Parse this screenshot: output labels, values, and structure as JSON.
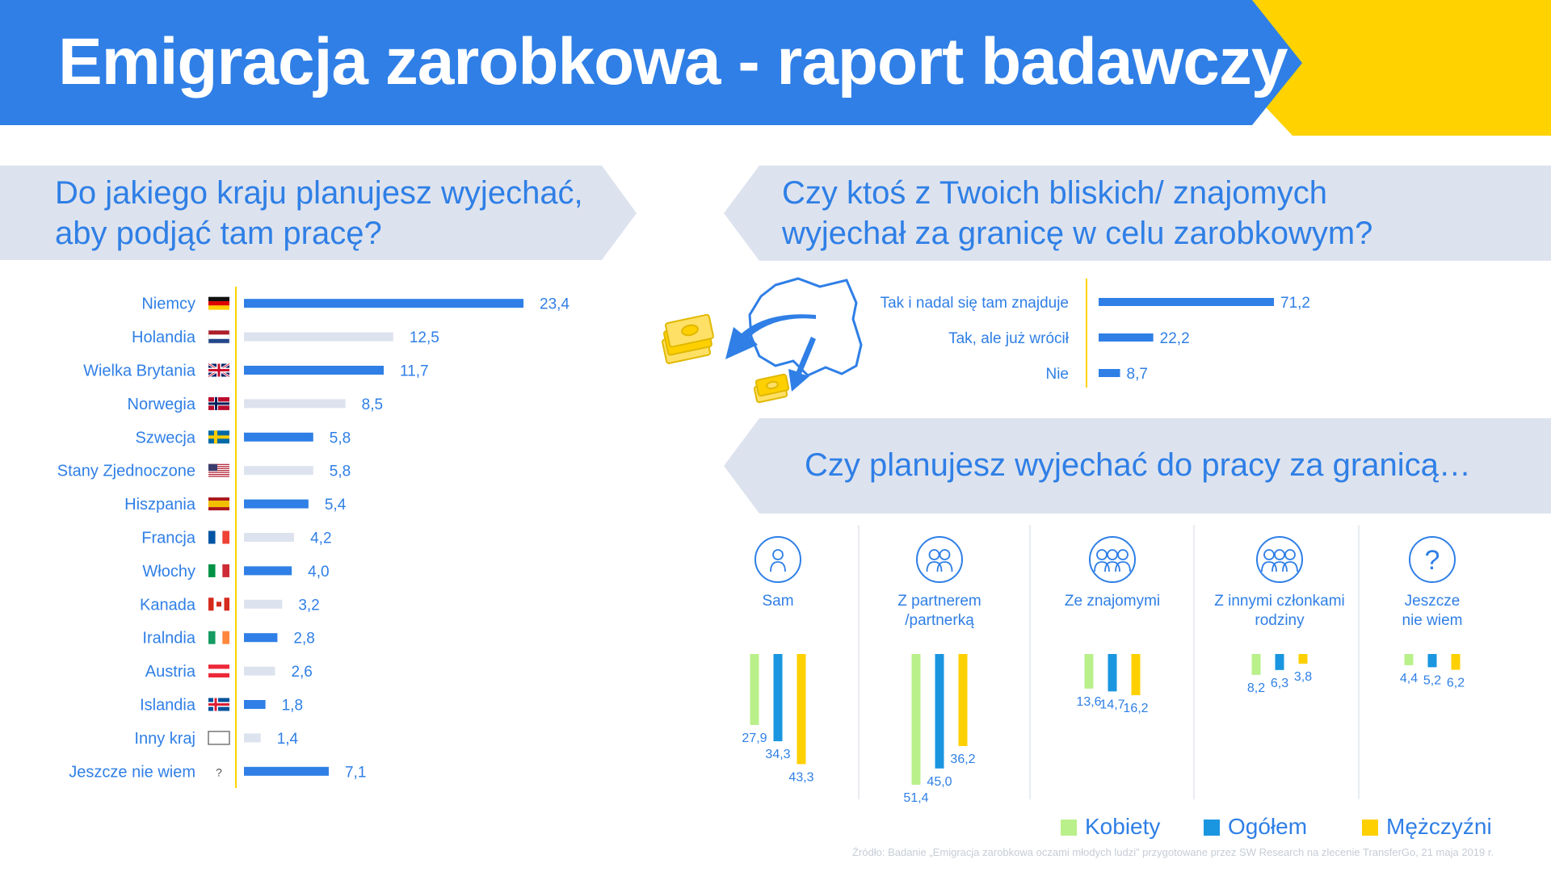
{
  "header": {
    "title": "Emigracja zarobkowa - raport badawczy"
  },
  "colors": {
    "accent": "#2f7fe6",
    "light_bar": "#dde3ee",
    "banner_yellow": "#ffd200",
    "kobiety": "#b9f08a",
    "ogolem": "#1a96e0",
    "mezczyzni": "#ffd000"
  },
  "questions": {
    "q1": {
      "line1": "Do jakiego kraju planujesz wyjechać,",
      "line2": "aby podjąć tam pracę?"
    },
    "q2": {
      "line1": "Czy ktoś z Twoich bliskich/ znajomych",
      "line2": "wyjechał za granicę w celu zarobkowym?"
    },
    "q3": {
      "line1": "Czy planujesz wyjechać do pracy za granicą…"
    }
  },
  "chart_data": [
    {
      "type": "bar",
      "orientation": "horizontal",
      "categories": [
        "Niemcy",
        "Holandia",
        "Wielka Brytania",
        "Norwegia",
        "Szwecja",
        "Stany Zjednoczone",
        "Hiszpania",
        "Francja",
        "Włochy",
        "Kanada",
        "Iralndia",
        "Austria",
        "Islandia",
        "Inny kraj",
        "Jeszcze nie wiem"
      ],
      "values": [
        23.4,
        12.5,
        11.7,
        8.5,
        5.8,
        5.8,
        5.4,
        4.2,
        4.0,
        3.2,
        2.8,
        2.6,
        1.8,
        1.4,
        7.1
      ],
      "value_labels": [
        "23,4",
        "12,5",
        "11,7",
        "8,5",
        "5,8",
        "5,8",
        "5,4",
        "4,2",
        "4,0",
        "3,2",
        "2,8",
        "2,6",
        "1,8",
        "1,4",
        "7,1"
      ],
      "icons": [
        "flag-de",
        "flag-nl",
        "flag-gb",
        "flag-no",
        "flag-se",
        "flag-us",
        "flag-es",
        "flag-fr",
        "flag-it",
        "flag-ca",
        "flag-ie",
        "flag-at",
        "flag-is",
        "flag-empty",
        "question-mark"
      ],
      "question_glyph": "?",
      "bar_colors": [
        "#2f7fe6",
        "#dde3ee",
        "#2f7fe6",
        "#dde3ee",
        "#2f7fe6",
        "#dde3ee",
        "#2f7fe6",
        "#dde3ee",
        "#2f7fe6",
        "#dde3ee",
        "#2f7fe6",
        "#dde3ee",
        "#2f7fe6",
        "#dde3ee",
        "#2f7fe6"
      ]
    },
    {
      "type": "bar",
      "orientation": "horizontal",
      "categories": [
        "Tak i nadal się tam znajduje",
        "Tak, ale już wrócił",
        "Nie"
      ],
      "values": [
        71.2,
        22.2,
        8.7
      ],
      "value_labels": [
        "71,2",
        "22,2",
        "8,7"
      ]
    },
    {
      "type": "bar",
      "orientation": "vertical",
      "categories": [
        {
          "line1": "Sam",
          "line2": "",
          "icon": "person-icon"
        },
        {
          "line1": "Z partnerem",
          "line2": "/partnerką",
          "icon": "couple-icon"
        },
        {
          "line1": "Ze znajomymi",
          "line2": "",
          "icon": "friends-icon"
        },
        {
          "line1": "Z innymi członkami",
          "line2": "rodziny",
          "icon": "family-icon"
        },
        {
          "line1": "Jeszcze",
          "line2": "nie wiem",
          "icon": "question-icon"
        }
      ],
      "series": [
        {
          "name": "Kobiety",
          "values": [
            27.9,
            51.4,
            13.6,
            8.2,
            4.4
          ],
          "labels": [
            "27,9",
            "51,4",
            "13,6",
            "8,2",
            "4,4"
          ]
        },
        {
          "name": "Ogółem",
          "values": [
            34.3,
            45.0,
            14.7,
            6.3,
            5.2
          ],
          "labels": [
            "34,3",
            "45,0",
            "14,7",
            "6,3",
            "5,2"
          ]
        },
        {
          "name": "Mężczyźni",
          "values": [
            43.3,
            36.2,
            16.2,
            3.8,
            6.2
          ],
          "labels": [
            "43,3",
            "36,2",
            "16,2",
            "3,8",
            "6,2"
          ]
        }
      ],
      "question_glyph": "?"
    }
  ],
  "source": "Źródło: Badanie „Emigracja zarobkowa oczami młodych ludzi” przygotowane przez SW Research na zlecenie TransferGo, 21 maja 2019 r."
}
